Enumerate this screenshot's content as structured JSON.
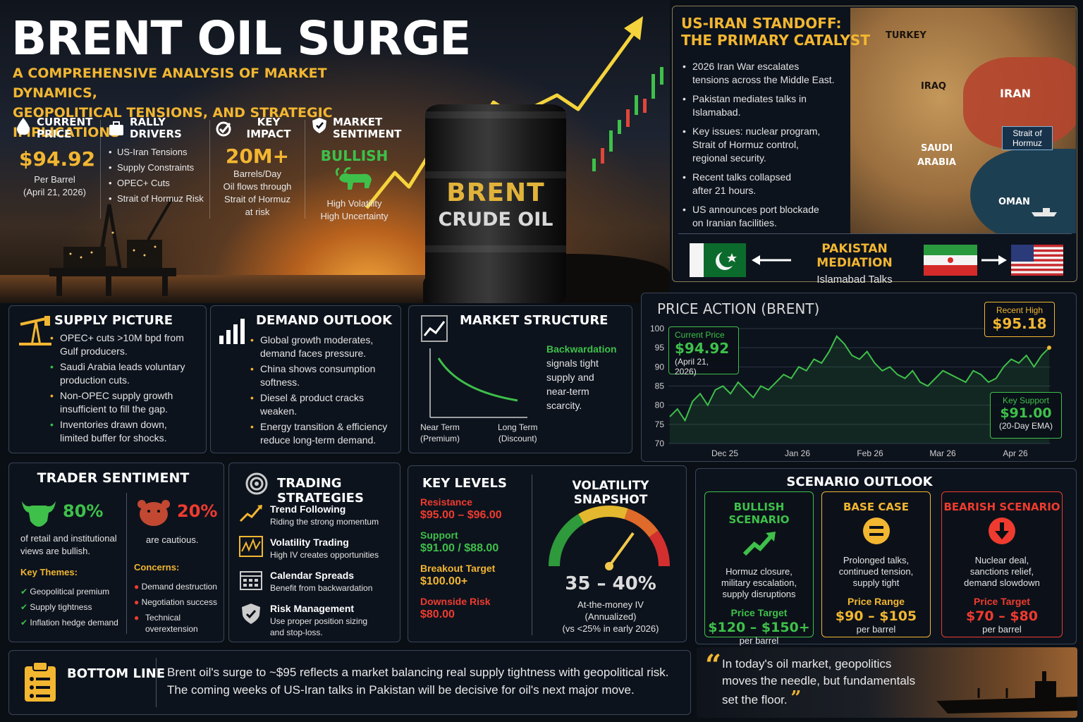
{
  "hero": {
    "title": "BRENT OIL SURGE",
    "subtitle_line1": "A COMPREHENSIVE ANALYSIS OF MARKET DYNAMICS,",
    "subtitle_line2": "GEOPOLITICAL TENSIONS, AND STRATEGIC IMPLICATIONS",
    "barrel_line1": "BRENT",
    "barrel_line2": "CRUDE OIL"
  },
  "stats": {
    "current_price": {
      "head1": "CURRENT",
      "head2": "PRICE",
      "value": "$94.92",
      "unit": "Per Barrel",
      "date": "(April 21, 2026)",
      "icon": "droplet-icon"
    },
    "rally_drivers": {
      "head": "RALLY DRIVERS",
      "items": [
        "US-Iran Tensions",
        "Supply Constraints",
        "OPEC+ Cuts",
        "Strait of Hormuz Risk"
      ],
      "icon": "briefcase-icon"
    },
    "key_impact": {
      "head": "KEY IMPACT",
      "value": "20M+",
      "l1": "Barrels/Day",
      "l2": "Oil flows through",
      "l3": "Strait of Hormuz",
      "l4": "at risk",
      "icon": "target-check-icon"
    },
    "sentiment": {
      "head1": "MARKET",
      "head2": "SENTIMENT",
      "value": "BULLISH",
      "l1": "High Volatility",
      "l2": "High Uncertainty",
      "icon": "shield-icon"
    }
  },
  "standoff": {
    "title1": "US-IRAN STANDOFF:",
    "title2": "THE PRIMARY CATALYST",
    "items": [
      [
        "2026 Iran War escalates",
        "tensions across the Middle East."
      ],
      [
        "Pakistan mediates talks in",
        "Islamabad."
      ],
      [
        "Key issues: nuclear program,",
        "Strait of Hormuz control,",
        "regional security."
      ],
      [
        "Recent talks collapsed",
        "after 21 hours."
      ],
      [
        "US announces port blockade",
        "on Iranian facilities."
      ]
    ],
    "map": {
      "turkey": "TURKEY",
      "iraq": "IRAQ",
      "iran": "IRAN",
      "saudi1": "SAUDI",
      "saudi2": "ARABIA",
      "oman": "OMAN",
      "strait1": "Strait of",
      "strait2": "Hormuz"
    },
    "mediation_title": "PAKISTAN MEDIATION",
    "mediation_sub": "Islamabad Talks"
  },
  "supply": {
    "title": "SUPPLY PICTURE",
    "items": [
      [
        "OPEC+ cuts >10M bpd from",
        "Gulf producers."
      ],
      [
        "Saudi Arabia leads voluntary",
        "production cuts."
      ],
      [
        "Non-OPEC supply growth",
        "insufficient to fill the gap."
      ],
      [
        "Inventories drawn down,",
        "limited buffer for shocks."
      ]
    ]
  },
  "demand": {
    "title": "DEMAND OUTLOOK",
    "items": [
      [
        "Global growth moderates,",
        "demand faces pressure."
      ],
      [
        "China shows consumption",
        "softness."
      ],
      [
        "Diesel & product cracks",
        "weaken."
      ],
      [
        "Energy transition & efficiency",
        "reduce long-term demand."
      ]
    ]
  },
  "structure": {
    "title": "MARKET STRUCTURE",
    "key": "Backwardation",
    "desc": [
      "signals tight",
      "supply and",
      "near-term",
      "scarcity."
    ],
    "near1": "Near Term",
    "near2": "(Premium)",
    "long1": "Long Term",
    "long2": "(Discount)"
  },
  "price_action": {
    "title": "PRICE ACTION (BRENT)",
    "current_label": "Current Price",
    "current_value": "$94.92",
    "current_date": "(April 21, 2026)",
    "high_label": "Recent High",
    "high_value": "$95.18",
    "support_label": "Key Support",
    "support_value": "$91.00",
    "support_note": "(20-Day EMA)"
  },
  "chart_data": {
    "type": "line",
    "title": "PRICE ACTION (BRENT)",
    "xlabel": "",
    "ylabel": "",
    "ylim": [
      70,
      100
    ],
    "yticks": [
      70,
      75,
      80,
      85,
      90,
      95,
      100
    ],
    "xticks": [
      "Dec 25",
      "Jan 26",
      "Feb 26",
      "Mar 26",
      "Apr 26"
    ],
    "values": [
      77,
      79,
      76,
      81,
      83,
      80,
      84,
      85,
      83,
      86,
      84,
      82,
      85,
      84,
      86,
      88,
      87,
      90,
      89,
      92,
      91,
      94,
      98,
      96,
      93,
      92,
      94,
      91,
      89,
      90,
      88,
      87,
      89,
      86,
      85,
      87,
      89,
      88,
      87,
      86,
      89,
      88,
      86,
      87,
      90,
      92,
      91,
      93,
      90,
      93,
      95
    ],
    "grid": true
  },
  "trader": {
    "title": "TRADER SENTIMENT",
    "bull_pct": "80%",
    "bull_desc1": "of retail and institutional",
    "bull_desc2": "views are bullish.",
    "bear_pct": "20%",
    "bear_desc": "are cautious.",
    "themes_title": "Key Themes:",
    "themes": [
      "Geopolitical premium",
      "Supply tightness",
      "Inflation hedge demand"
    ],
    "concerns_title": "Concerns:",
    "concerns": [
      [
        "Demand destruction"
      ],
      [
        "Negotiation success"
      ],
      [
        "Technical",
        "overextension"
      ]
    ]
  },
  "strategies": {
    "title": "TRADING STRATEGIES",
    "items": [
      {
        "name": "Trend Following",
        "desc": [
          "Riding the strong momentum"
        ],
        "icon": "trend-icon"
      },
      {
        "name": "Volatility Trading",
        "desc": [
          "High IV creates opportunities"
        ],
        "icon": "volatility-icon"
      },
      {
        "name": "Calendar Spreads",
        "desc": [
          "Benefit from backwardation"
        ],
        "icon": "calendar-icon"
      },
      {
        "name": "Risk Management",
        "desc": [
          "Use proper position sizing",
          "and stop-loss."
        ],
        "icon": "shield-check-icon"
      }
    ]
  },
  "levels": {
    "title": "KEY LEVELS",
    "resistance_label": "Resistance",
    "resistance": "$95.00 – $96.00",
    "support_label": "Support",
    "support": "$91.00 / $88.00",
    "breakout_label": "Breakout Target",
    "breakout": "$100.00+",
    "downside_label": "Downside Risk",
    "downside": "$80.00"
  },
  "volatility": {
    "title": "VOLATILITY SNAPSHOT",
    "value": "35 – 40%",
    "l1": "At-the-money IV",
    "l2": "(Annualized)",
    "l3": "(vs <25% in early 2026)",
    "gauge_level": 0.7
  },
  "scenarios": {
    "title": "SCENARIO OUTLOOK",
    "bull": {
      "title": "BULLISH SCENARIO",
      "desc": [
        "Hormuz closure,",
        "military escalation,",
        "supply disruptions"
      ],
      "pt": "Price Target",
      "pv": "$120 – $150+",
      "pu": "per barrel"
    },
    "base": {
      "title": "BASE CASE",
      "desc": [
        "Prolonged talks,",
        "continued tension,",
        "supply tight"
      ],
      "pt": "Price Range",
      "pv": "$90 – $105",
      "pu": "per barrel"
    },
    "bear": {
      "title": "BEARISH SCENARIO",
      "desc": [
        "Nuclear deal,",
        "sanctions relief,",
        "demand slowdown"
      ],
      "pt": "Price Target",
      "pv": "$70 – $80",
      "pu": "per barrel"
    }
  },
  "bottom": {
    "title": "BOTTOM LINE",
    "line1": "Brent oil's surge to ~$95 reflects a market balancing real supply tightness with geopolitical risk.",
    "line2": "The coming weeks of US-Iran talks in Pakistan will be decisive for oil's next major move."
  },
  "quote": {
    "l1": "In today's oil market, geopolitics",
    "l2": "moves the needle, but fundamentals",
    "l3": "set the floor."
  },
  "colors": {
    "gold": "#f2b631",
    "green": "#3ec04a",
    "red": "#ef3b2f",
    "panel": "#0e141e"
  }
}
